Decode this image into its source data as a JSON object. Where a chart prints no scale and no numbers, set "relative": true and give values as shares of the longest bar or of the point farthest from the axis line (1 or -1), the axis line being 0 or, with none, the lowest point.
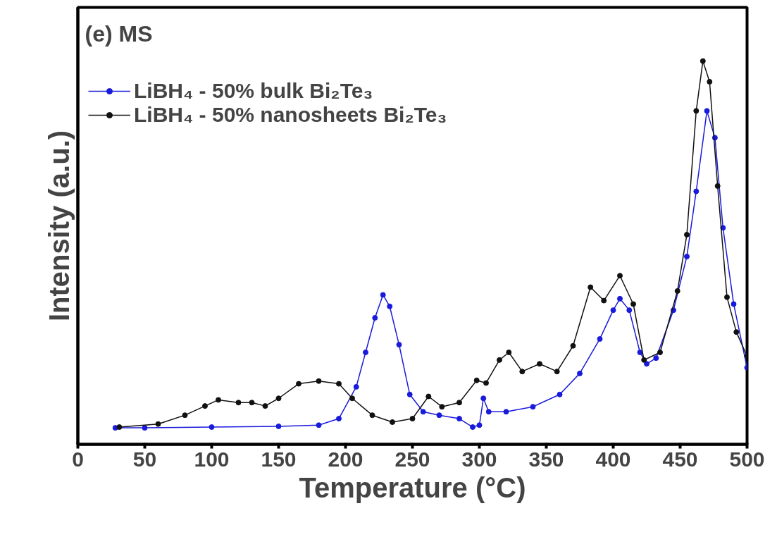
{
  "chart_data": {
    "type": "line",
    "relative": true,
    "title": "(e) MS",
    "xlabel": "Temperature (°C)",
    "ylabel": "Intensity (a.u.)",
    "xlim": [
      0,
      500
    ],
    "xticks": [
      0,
      50,
      100,
      150,
      200,
      250,
      300,
      350,
      400,
      450,
      500
    ],
    "grid": false,
    "legend": "top left",
    "marker": "circle",
    "line_style": "solid",
    "series": [
      {
        "name": "LiBH₄ - 50% bulk Bi₂Te₃",
        "color": "#1a1adc",
        "x": [
          28,
          50,
          100,
          150,
          180,
          195,
          208,
          215,
          222,
          228,
          233,
          240,
          248,
          258,
          270,
          285,
          295,
          300,
          303,
          307,
          320,
          340,
          360,
          375,
          390,
          400,
          405,
          412,
          420,
          425,
          432,
          445,
          455,
          462,
          470,
          476,
          482,
          490,
          500
        ],
        "values": [
          0.043,
          0.043,
          0.045,
          0.047,
          0.05,
          0.067,
          0.15,
          0.24,
          0.33,
          0.39,
          0.36,
          0.26,
          0.13,
          0.085,
          0.076,
          0.067,
          0.045,
          0.05,
          0.12,
          0.085,
          0.085,
          0.098,
          0.13,
          0.185,
          0.275,
          0.35,
          0.38,
          0.35,
          0.24,
          0.21,
          0.225,
          0.35,
          0.49,
          0.66,
          0.87,
          0.8,
          0.565,
          0.366,
          0.2
        ]
      },
      {
        "name": "LiBH₄ - 50% nanosheets Bi₂Te₃",
        "color": "#111111",
        "x": [
          31,
          60,
          80,
          95,
          105,
          120,
          130,
          140,
          150,
          165,
          180,
          195,
          205,
          220,
          235,
          250,
          262,
          272,
          285,
          298,
          305,
          315,
          322,
          332,
          345,
          358,
          370,
          383,
          393,
          405,
          415,
          423,
          435,
          448,
          455,
          462,
          467,
          472,
          478,
          485,
          492,
          500
        ],
        "values": [
          0.045,
          0.053,
          0.076,
          0.1,
          0.116,
          0.109,
          0.109,
          0.1,
          0.12,
          0.158,
          0.165,
          0.158,
          0.12,
          0.076,
          0.058,
          0.067,
          0.125,
          0.098,
          0.109,
          0.167,
          0.16,
          0.22,
          0.24,
          0.19,
          0.21,
          0.19,
          0.257,
          0.41,
          0.375,
          0.44,
          0.366,
          0.22,
          0.24,
          0.4,
          0.547,
          0.87,
          1.0,
          0.946,
          0.674,
          0.384,
          0.293,
          0.23
        ]
      }
    ]
  }
}
